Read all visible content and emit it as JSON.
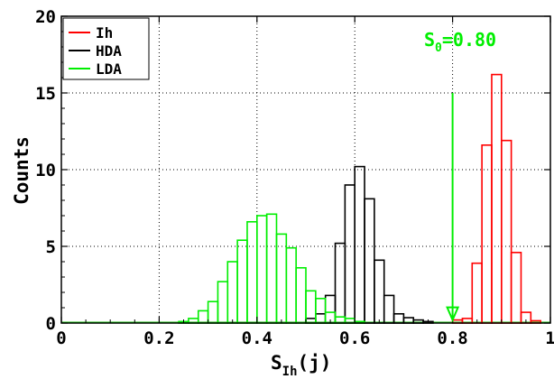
{
  "chart_data": {
    "type": "histogram",
    "xlabel": "S",
    "xlabel_sub": "Ih",
    "xlabel_tail": "(j)",
    "ylabel": "Counts",
    "xlim": [
      0,
      1
    ],
    "ylim": [
      0,
      20
    ],
    "xticks": [
      0,
      0.2,
      0.4,
      0.6,
      0.8,
      1
    ],
    "xtick_labels": [
      "0",
      "0.2",
      "0.4",
      "0.6",
      "0.8",
      "1"
    ],
    "yticks": [
      0,
      5,
      10,
      15,
      20
    ],
    "ytick_labels": [
      "0",
      "5",
      "10",
      "15",
      "20"
    ],
    "grid": true,
    "legend_position": "top-left",
    "bin_width": 0.02,
    "series": [
      {
        "name": "Ih",
        "color": "#ff0000",
        "bins": [
          {
            "x0": 0.8,
            "count": 0.2
          },
          {
            "x0": 0.82,
            "count": 0.3
          },
          {
            "x0": 0.84,
            "count": 3.9
          },
          {
            "x0": 0.86,
            "count": 11.6
          },
          {
            "x0": 0.88,
            "count": 16.2
          },
          {
            "x0": 0.9,
            "count": 11.9
          },
          {
            "x0": 0.92,
            "count": 4.6
          },
          {
            "x0": 0.94,
            "count": 0.7
          },
          {
            "x0": 0.96,
            "count": 0.15
          }
        ]
      },
      {
        "name": "HDA",
        "color": "#000000",
        "bins": [
          {
            "x0": 0.5,
            "count": 0.3
          },
          {
            "x0": 0.52,
            "count": 0.6
          },
          {
            "x0": 0.54,
            "count": 1.8
          },
          {
            "x0": 0.56,
            "count": 5.2
          },
          {
            "x0": 0.58,
            "count": 9.0
          },
          {
            "x0": 0.6,
            "count": 10.2
          },
          {
            "x0": 0.62,
            "count": 8.1
          },
          {
            "x0": 0.64,
            "count": 4.1
          },
          {
            "x0": 0.66,
            "count": 1.8
          },
          {
            "x0": 0.68,
            "count": 0.6
          },
          {
            "x0": 0.7,
            "count": 0.35
          },
          {
            "x0": 0.72,
            "count": 0.2
          },
          {
            "x0": 0.74,
            "count": 0.1
          }
        ]
      },
      {
        "name": "LDA",
        "color": "#00ee00",
        "bins": [
          {
            "x0": 0.24,
            "count": 0.1
          },
          {
            "x0": 0.26,
            "count": 0.3
          },
          {
            "x0": 0.28,
            "count": 0.8
          },
          {
            "x0": 0.3,
            "count": 1.4
          },
          {
            "x0": 0.32,
            "count": 2.7
          },
          {
            "x0": 0.34,
            "count": 4.0
          },
          {
            "x0": 0.36,
            "count": 5.4
          },
          {
            "x0": 0.38,
            "count": 6.6
          },
          {
            "x0": 0.4,
            "count": 7.0
          },
          {
            "x0": 0.42,
            "count": 7.1
          },
          {
            "x0": 0.44,
            "count": 5.8
          },
          {
            "x0": 0.46,
            "count": 4.9
          },
          {
            "x0": 0.48,
            "count": 3.6
          },
          {
            "x0": 0.5,
            "count": 2.1
          },
          {
            "x0": 0.52,
            "count": 1.6
          },
          {
            "x0": 0.54,
            "count": 0.7
          },
          {
            "x0": 0.56,
            "count": 0.4
          },
          {
            "x0": 0.58,
            "count": 0.3
          },
          {
            "x0": 0.6,
            "count": 0.1
          }
        ]
      }
    ],
    "annotation": {
      "text_main": "S",
      "text_sub": "0",
      "text_tail": "=0.80",
      "x": 0.8,
      "y_top": 15.0,
      "y_bottom": 0.2,
      "color": "#00ee00"
    }
  }
}
